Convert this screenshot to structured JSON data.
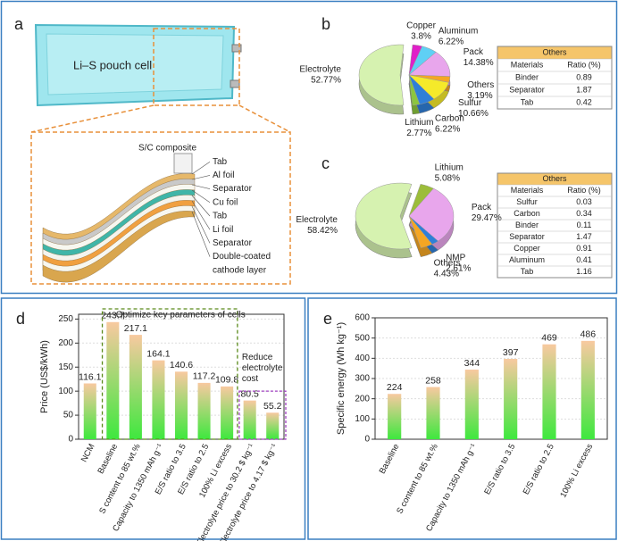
{
  "diagram": {
    "label": "a",
    "cell_label": "Li–S pouch cell",
    "layers": [
      "S/C composite",
      "Tab",
      "Al foil",
      "Separator",
      "Cu foil",
      "Tab",
      "Li foil",
      "Separator",
      "Double-coated",
      "cathode layer"
    ]
  },
  "chart_data": [
    {
      "type": "pie",
      "label": "b",
      "categories": [
        "Copper",
        "Aluminum",
        "Pack",
        "Others",
        "Sulfur",
        "Carbon",
        "Lithium",
        "Electrolyte"
      ],
      "values": [
        3.8,
        6.22,
        14.38,
        3.19,
        10.66,
        6.22,
        2.77,
        52.77
      ],
      "value_labels": [
        "3.8%",
        "6.22%",
        "14.38%",
        "3.19%",
        "10.66%",
        "6.22%",
        "2.77%",
        "52.77%"
      ],
      "colors": [
        "#e020c8",
        "#5fd0f5",
        "#e8a6ec",
        "#f5a623",
        "#f5ea2a",
        "#2f7fd8",
        "#8cc63f",
        "#d6f2b0"
      ],
      "exploded": "Electrolyte",
      "table": {
        "title": "Others",
        "columns": [
          "Materials",
          "Ratio (%)"
        ],
        "rows": [
          [
            "Binder",
            "0.89"
          ],
          [
            "Separator",
            "1.87"
          ],
          [
            "Tab",
            "0.42"
          ]
        ]
      }
    },
    {
      "type": "pie",
      "label": "c",
      "categories": [
        "Lithium",
        "Pack",
        "NMP",
        "Others",
        "Electrolyte"
      ],
      "values": [
        5.08,
        29.47,
        2.61,
        4.43,
        58.42
      ],
      "value_labels": [
        "5.08%",
        "29.47%",
        "2.61%",
        "4.43%",
        "58.42%"
      ],
      "colors": [
        "#9cbd3a",
        "#e8a6ec",
        "#2f7fd8",
        "#f5a623",
        "#d6f2b0"
      ],
      "exploded": "Electrolyte",
      "table": {
        "title": "Others",
        "columns": [
          "Materials",
          "Ratio (%)"
        ],
        "rows": [
          [
            "Sulfur",
            "0.03"
          ],
          [
            "Carbon",
            "0.34"
          ],
          [
            "Binder",
            "0.11"
          ],
          [
            "Separator",
            "1.47"
          ],
          [
            "Copper",
            "0.91"
          ],
          [
            "Aluminum",
            "0.41"
          ],
          [
            "Tab",
            "1.16"
          ]
        ]
      }
    },
    {
      "type": "bar",
      "label": "d",
      "y_label": "Price (US$/kWh)",
      "categories": [
        "NCM",
        "Baseline",
        "S content to 85 wt.%",
        "Capacity to 1350 mAh g⁻¹",
        "E/S ratio to 3.5",
        "E/S ratio to 2.5",
        "100% Li excess",
        "Electrolyte price to 30.2 $ kg⁻¹",
        "Electrolyte price to 4.17 $ kg⁻¹"
      ],
      "values": [
        116.1,
        243.7,
        217.1,
        164.1,
        140.6,
        117.2,
        109.8,
        80.5,
        55.2
      ],
      "gradient": [
        "#f8c9a0",
        "#3ee83e"
      ],
      "ylim": [
        0,
        260
      ],
      "yticks": [
        0,
        50,
        100,
        150,
        200,
        250
      ],
      "grid": true,
      "annotations": [
        {
          "text": "Optimize key parameters of cells"
        },
        {
          "lines": [
            "Reduce",
            "electrolyte",
            "cost"
          ]
        }
      ]
    },
    {
      "type": "bar",
      "label": "e",
      "y_label": "Specific energy (Wh kg⁻¹)",
      "categories": [
        "Baseline",
        "S content to 85 wt.%",
        "Capacity to 1350 mAh g⁻¹",
        "E/S ratio to 3.5",
        "E/S ratio to 2.5",
        "100% Li excess"
      ],
      "values": [
        224,
        258,
        344,
        397,
        469,
        486
      ],
      "gradient": [
        "#f8c9a0",
        "#3ee83e"
      ],
      "ylim": [
        0,
        600
      ],
      "yticks": [
        0,
        100,
        200,
        300,
        400,
        500,
        600
      ],
      "grid": true
    }
  ]
}
